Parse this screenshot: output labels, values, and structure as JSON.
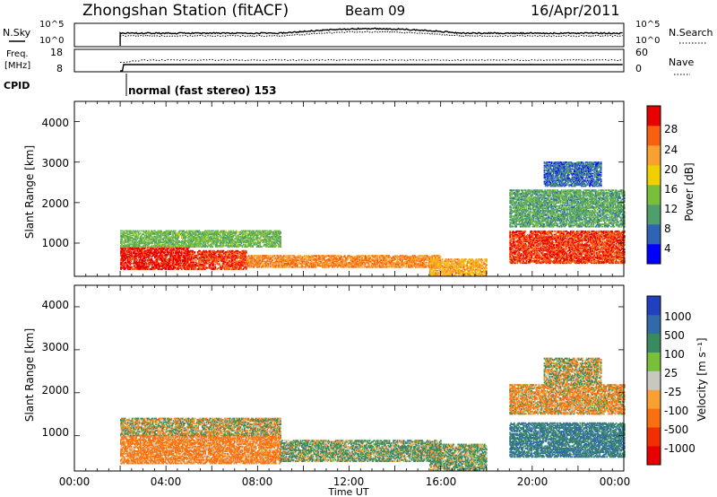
{
  "header": {
    "station": "Zhongshan Station (fitACF)",
    "beam": "Beam 09",
    "date": "16/Apr/2011"
  },
  "noise_panel": {
    "left_label": "N.Sky",
    "left_ticks": [
      "10^5",
      "10^0"
    ],
    "right_ticks": [
      "10^5",
      "10^0"
    ],
    "right_label": "N.Search"
  },
  "freq_panel": {
    "left_label_line1": "Freq.",
    "left_label_line2": "[MHz]",
    "left_ticks": [
      "18",
      "8"
    ],
    "right_ticks": [
      "60",
      "0"
    ],
    "right_label": "Nave"
  },
  "cpid": {
    "label": "CPID",
    "mode": "normal (fast stereo) 153"
  },
  "power_panel": {
    "ylabel": "Slant Range [km]",
    "yticks": [
      "1000",
      "2000",
      "3000",
      "4000"
    ],
    "colorbar_label": "Power [dB]",
    "colorbar_ticks": [
      "4",
      "8",
      "12",
      "16",
      "20",
      "24",
      "28"
    ],
    "colors": [
      "#0000ff",
      "#2f63b4",
      "#4f9e6c",
      "#78c03c",
      "#f0d000",
      "#f8a030",
      "#f86010",
      "#e80000"
    ]
  },
  "velocity_panel": {
    "ylabel": "Slant Range [km]",
    "yticks": [
      "1000",
      "2000",
      "3000",
      "4000"
    ],
    "colorbar_label": "Velocity [m s⁻¹]",
    "colorbar_ticks": [
      "1000",
      "500",
      "100",
      "25",
      "-25",
      "-100",
      "-500",
      "-1000"
    ],
    "colors": [
      "#2040c0",
      "#306aa8",
      "#3a8a60",
      "#78c03c",
      "#c8c8c0",
      "#f8a030",
      "#f87010",
      "#f03000",
      "#e80000"
    ]
  },
  "x_axis": {
    "ticks": [
      "00:00",
      "04:00",
      "08:00",
      "12:00",
      "16:00",
      "20:00",
      "00:00"
    ],
    "label": "Time UT"
  },
  "chart_data": {
    "type": "heatmap",
    "title": "Zhongshan Station (fitACF)",
    "x": [
      "00:00",
      "04:00",
      "08:00",
      "12:00",
      "16:00",
      "20:00",
      "00:00"
    ],
    "xlabel": "Time UT",
    "ylabel": "Slant Range [km]",
    "ylim": [
      180,
      4500
    ],
    "panels": [
      {
        "name": "Power [dB]",
        "colorbar_range": [
          0,
          30
        ],
        "features": [
          {
            "t_start": 2.0,
            "t_end": 5.0,
            "r_min": 350,
            "r_max": 900,
            "value": 28
          },
          {
            "t_start": 5.0,
            "t_end": 7.5,
            "r_min": 350,
            "r_max": 800,
            "value": 26
          },
          {
            "t_start": 7.5,
            "t_end": 16.0,
            "r_min": 400,
            "r_max": 700,
            "value": 22
          },
          {
            "t_start": 2.0,
            "t_end": 9.0,
            "r_min": 900,
            "r_max": 1300,
            "value": 12
          },
          {
            "t_start": 15.5,
            "t_end": 18.0,
            "r_min": 200,
            "r_max": 600,
            "value": 20
          },
          {
            "t_start": 19.0,
            "t_end": 24.0,
            "r_min": 500,
            "r_max": 1300,
            "value": 26
          },
          {
            "t_start": 19.0,
            "t_end": 24.0,
            "r_min": 1400,
            "r_max": 2300,
            "value": 10
          },
          {
            "t_start": 20.5,
            "t_end": 23.0,
            "r_min": 2400,
            "r_max": 3000,
            "value": 6
          }
        ]
      },
      {
        "name": "Velocity [m s⁻¹]",
        "colorbar_range": [
          -1000,
          1000
        ],
        "features": [
          {
            "t_start": 2.0,
            "t_end": 9.0,
            "r_min": 350,
            "r_max": 1000,
            "value": -200
          },
          {
            "t_start": 2.0,
            "t_end": 9.0,
            "r_min": 1000,
            "r_max": 1400,
            "value": 0
          },
          {
            "t_start": 9.0,
            "t_end": 16.0,
            "r_min": 400,
            "r_max": 900,
            "value": 100
          },
          {
            "t_start": 15.5,
            "t_end": 18.0,
            "r_min": 200,
            "r_max": 800,
            "value": 100
          },
          {
            "t_start": 19.0,
            "t_end": 24.0,
            "r_min": 500,
            "r_max": 1300,
            "value": 300
          },
          {
            "t_start": 19.0,
            "t_end": 24.0,
            "r_min": 1500,
            "r_max": 2200,
            "value": -100
          },
          {
            "t_start": 20.5,
            "t_end": 23.0,
            "r_min": 2200,
            "r_max": 2800,
            "value": 0
          }
        ]
      }
    ]
  }
}
